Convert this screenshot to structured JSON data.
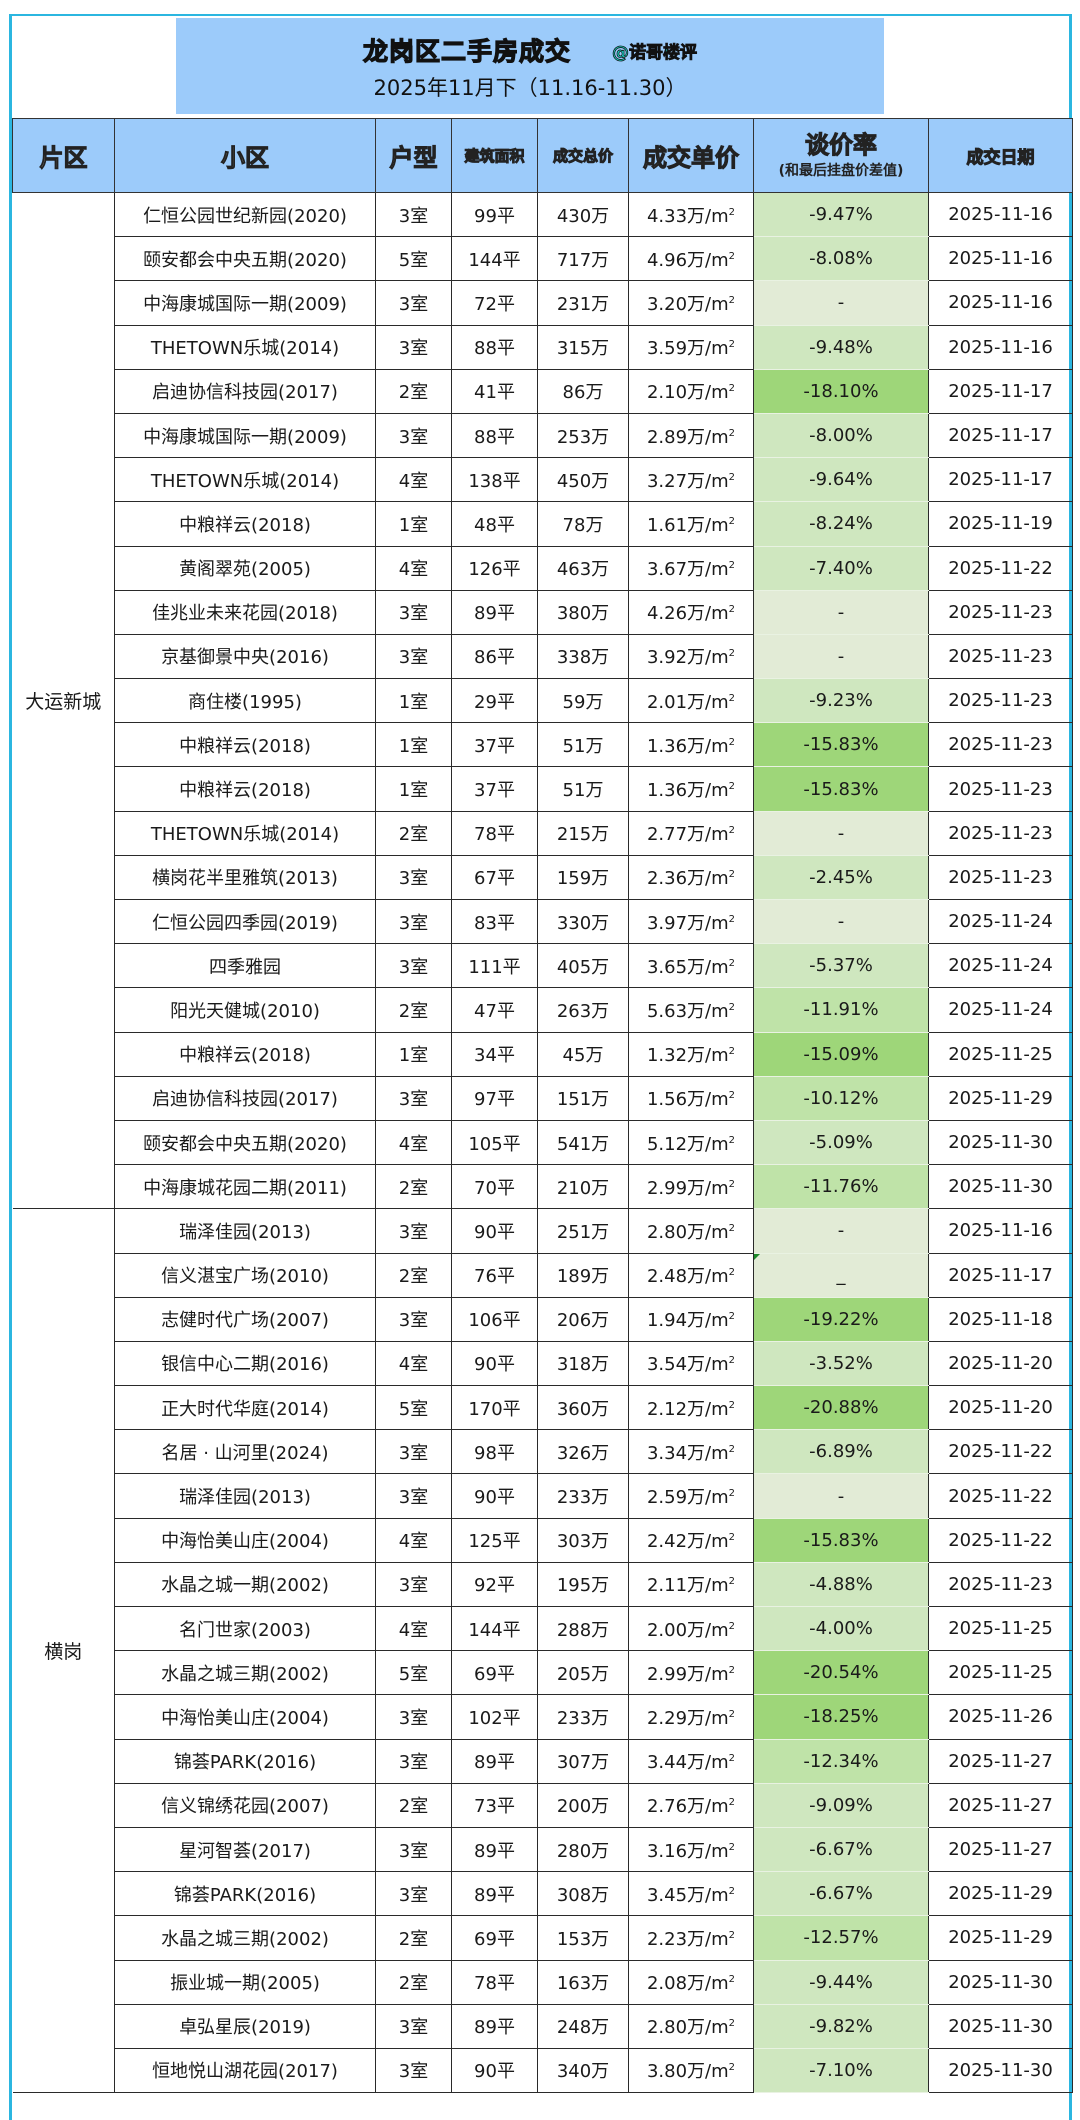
{
  "title": {
    "main": "龙岗区二手房成交",
    "handle": "@诺哥楼评",
    "subtitle": "2025年11月下（11.16-11.30）"
  },
  "columns": {
    "area": "片区",
    "estate": "小区",
    "layout": "户型",
    "size": "建筑面积",
    "total": "成交总价",
    "unit_price": "成交单价",
    "rate": "谈价率",
    "rate_note": "(和最后挂盘价差值)",
    "date": "成交日期"
  },
  "colors": {
    "header_bg": "#9ccbfa",
    "frame_border": "#2bb6e0",
    "rate_none": "#e2ebd6",
    "rate_light": "#cfe7bf",
    "rate_mid": "#bfe3a8",
    "rate_strong": "#9ed679"
  },
  "unit_suffix": "万/m",
  "groups": [
    {
      "area": "大运新城",
      "rows": [
        {
          "estate": "仁恒公园世纪新园(2020)",
          "layout": "3室",
          "size": "99平",
          "total": "430万",
          "unit": "4.33",
          "rate": "-9.47%",
          "date": "2025-11-16"
        },
        {
          "estate": "颐安都会中央五期(2020)",
          "layout": "5室",
          "size": "144平",
          "total": "717万",
          "unit": "4.96",
          "rate": "-8.08%",
          "date": "2025-11-16"
        },
        {
          "estate": "中海康城国际一期(2009)",
          "layout": "3室",
          "size": "72平",
          "total": "231万",
          "unit": "3.20",
          "rate": "-",
          "date": "2025-11-16"
        },
        {
          "estate": "THETOWN乐城(2014)",
          "layout": "3室",
          "size": "88平",
          "total": "315万",
          "unit": "3.59",
          "rate": "-9.48%",
          "date": "2025-11-16"
        },
        {
          "estate": "启迪协信科技园(2017)",
          "layout": "2室",
          "size": "41平",
          "total": "86万",
          "unit": "2.10",
          "rate": "-18.10%",
          "date": "2025-11-17"
        },
        {
          "estate": "中海康城国际一期(2009)",
          "layout": "3室",
          "size": "88平",
          "total": "253万",
          "unit": "2.89",
          "rate": "-8.00%",
          "date": "2025-11-17"
        },
        {
          "estate": "THETOWN乐城(2014)",
          "layout": "4室",
          "size": "138平",
          "total": "450万",
          "unit": "3.27",
          "rate": "-9.64%",
          "date": "2025-11-17"
        },
        {
          "estate": "中粮祥云(2018)",
          "layout": "1室",
          "size": "48平",
          "total": "78万",
          "unit": "1.61",
          "rate": "-8.24%",
          "date": "2025-11-19"
        },
        {
          "estate": "黄阁翠苑(2005)",
          "layout": "4室",
          "size": "126平",
          "total": "463万",
          "unit": "3.67",
          "rate": "-7.40%",
          "date": "2025-11-22"
        },
        {
          "estate": "佳兆业未来花园(2018)",
          "layout": "3室",
          "size": "89平",
          "total": "380万",
          "unit": "4.26",
          "rate": "-",
          "date": "2025-11-23"
        },
        {
          "estate": "京基御景中央(2016)",
          "layout": "3室",
          "size": "86平",
          "total": "338万",
          "unit": "3.92",
          "rate": "-",
          "date": "2025-11-23"
        },
        {
          "estate": "商住楼(1995)",
          "layout": "1室",
          "size": "29平",
          "total": "59万",
          "unit": "2.01",
          "rate": "-9.23%",
          "date": "2025-11-23"
        },
        {
          "estate": "中粮祥云(2018)",
          "layout": "1室",
          "size": "37平",
          "total": "51万",
          "unit": "1.36",
          "rate": "-15.83%",
          "date": "2025-11-23"
        },
        {
          "estate": "中粮祥云(2018)",
          "layout": "1室",
          "size": "37平",
          "total": "51万",
          "unit": "1.36",
          "rate": "-15.83%",
          "date": "2025-11-23"
        },
        {
          "estate": "THETOWN乐城(2014)",
          "layout": "2室",
          "size": "78平",
          "total": "215万",
          "unit": "2.77",
          "rate": "-",
          "date": "2025-11-23"
        },
        {
          "estate": "横岗花半里雅筑(2013)",
          "layout": "3室",
          "size": "67平",
          "total": "159万",
          "unit": "2.36",
          "rate": "-2.45%",
          "date": "2025-11-23"
        },
        {
          "estate": "仁恒公园四季园(2019)",
          "layout": "3室",
          "size": "83平",
          "total": "330万",
          "unit": "3.97",
          "rate": "-",
          "date": "2025-11-24"
        },
        {
          "estate": "四季雅园",
          "layout": "3室",
          "size": "111平",
          "total": "405万",
          "unit": "3.65",
          "rate": "-5.37%",
          "date": "2025-11-24"
        },
        {
          "estate": "阳光天健城(2010)",
          "layout": "2室",
          "size": "47平",
          "total": "263万",
          "unit": "5.63",
          "rate": "-11.91%",
          "date": "2025-11-24"
        },
        {
          "estate": "中粮祥云(2018)",
          "layout": "1室",
          "size": "34平",
          "total": "45万",
          "unit": "1.32",
          "rate": "-15.09%",
          "date": "2025-11-25"
        },
        {
          "estate": "启迪协信科技园(2017)",
          "layout": "3室",
          "size": "97平",
          "total": "151万",
          "unit": "1.56",
          "rate": "-10.12%",
          "date": "2025-11-29"
        },
        {
          "estate": "颐安都会中央五期(2020)",
          "layout": "4室",
          "size": "105平",
          "total": "541万",
          "unit": "5.12",
          "rate": "-5.09%",
          "date": "2025-11-30"
        },
        {
          "estate": "中海康城花园二期(2011)",
          "layout": "2室",
          "size": "70平",
          "total": "210万",
          "unit": "2.99",
          "rate": "-11.76%",
          "date": "2025-11-30"
        }
      ]
    },
    {
      "area": "横岗",
      "rows": [
        {
          "estate": "瑞泽佳园(2013)",
          "layout": "3室",
          "size": "90平",
          "total": "251万",
          "unit": "2.80",
          "rate": "-",
          "date": "2025-11-16"
        },
        {
          "estate": "信义湛宝广场(2010)",
          "layout": "2室",
          "size": "76平",
          "total": "189万",
          "unit": "2.48",
          "rate": "_",
          "date": "2025-11-17"
        },
        {
          "estate": "志健时代广场(2007)",
          "layout": "3室",
          "size": "106平",
          "total": "206万",
          "unit": "1.94",
          "rate": "-19.22%",
          "date": "2025-11-18"
        },
        {
          "estate": "银信中心二期(2016)",
          "layout": "4室",
          "size": "90平",
          "total": "318万",
          "unit": "3.54",
          "rate": "-3.52%",
          "date": "2025-11-20"
        },
        {
          "estate": "正大时代华庭(2014)",
          "layout": "5室",
          "size": "170平",
          "total": "360万",
          "unit": "2.12",
          "rate": "-20.88%",
          "date": "2025-11-20"
        },
        {
          "estate": "名居 · 山河里(2024)",
          "layout": "3室",
          "size": "98平",
          "total": "326万",
          "unit": "3.34",
          "rate": "-6.89%",
          "date": "2025-11-22"
        },
        {
          "estate": "瑞泽佳园(2013)",
          "layout": "3室",
          "size": "90平",
          "total": "233万",
          "unit": "2.59",
          "rate": "-",
          "date": "2025-11-22"
        },
        {
          "estate": "中海怡美山庄(2004)",
          "layout": "4室",
          "size": "125平",
          "total": "303万",
          "unit": "2.42",
          "rate": "-15.83%",
          "date": "2025-11-22"
        },
        {
          "estate": "水晶之城一期(2002)",
          "layout": "3室",
          "size": "92平",
          "total": "195万",
          "unit": "2.11",
          "rate": "-4.88%",
          "date": "2025-11-23"
        },
        {
          "estate": "名门世家(2003)",
          "layout": "4室",
          "size": "144平",
          "total": "288万",
          "unit": "2.00",
          "rate": "-4.00%",
          "date": "2025-11-25"
        },
        {
          "estate": "水晶之城三期(2002)",
          "layout": "5室",
          "size": "69平",
          "total": "205万",
          "unit": "2.99",
          "rate": "-20.54%",
          "date": "2025-11-25"
        },
        {
          "estate": "中海怡美山庄(2004)",
          "layout": "3室",
          "size": "102平",
          "total": "233万",
          "unit": "2.29",
          "rate": "-18.25%",
          "date": "2025-11-26"
        },
        {
          "estate": "锦荟PARK(2016)",
          "layout": "3室",
          "size": "89平",
          "total": "307万",
          "unit": "3.44",
          "rate": "-12.34%",
          "date": "2025-11-27"
        },
        {
          "estate": "信义锦绣花园(2007)",
          "layout": "2室",
          "size": "73平",
          "total": "200万",
          "unit": "2.76",
          "rate": "-9.09%",
          "date": "2025-11-27"
        },
        {
          "estate": "星河智荟(2017)",
          "layout": "3室",
          "size": "89平",
          "total": "280万",
          "unit": "3.16",
          "rate": "-6.67%",
          "date": "2025-11-27"
        },
        {
          "estate": "锦荟PARK(2016)",
          "layout": "3室",
          "size": "89平",
          "total": "308万",
          "unit": "3.45",
          "rate": "-6.67%",
          "date": "2025-11-29"
        },
        {
          "estate": "水晶之城三期(2002)",
          "layout": "2室",
          "size": "69平",
          "total": "153万",
          "unit": "2.23",
          "rate": "-12.57%",
          "date": "2025-11-29"
        },
        {
          "estate": "振业城一期(2005)",
          "layout": "2室",
          "size": "78平",
          "total": "163万",
          "unit": "2.08",
          "rate": "-9.44%",
          "date": "2025-11-30"
        },
        {
          "estate": "卓弘星辰(2019)",
          "layout": "3室",
          "size": "89平",
          "total": "248万",
          "unit": "2.80",
          "rate": "-9.82%",
          "date": "2025-11-30"
        },
        {
          "estate": "恒地悦山湖花园(2017)",
          "layout": "3室",
          "size": "90平",
          "total": "340万",
          "unit": "3.80",
          "rate": "-7.10%",
          "date": "2025-11-30"
        }
      ]
    }
  ]
}
